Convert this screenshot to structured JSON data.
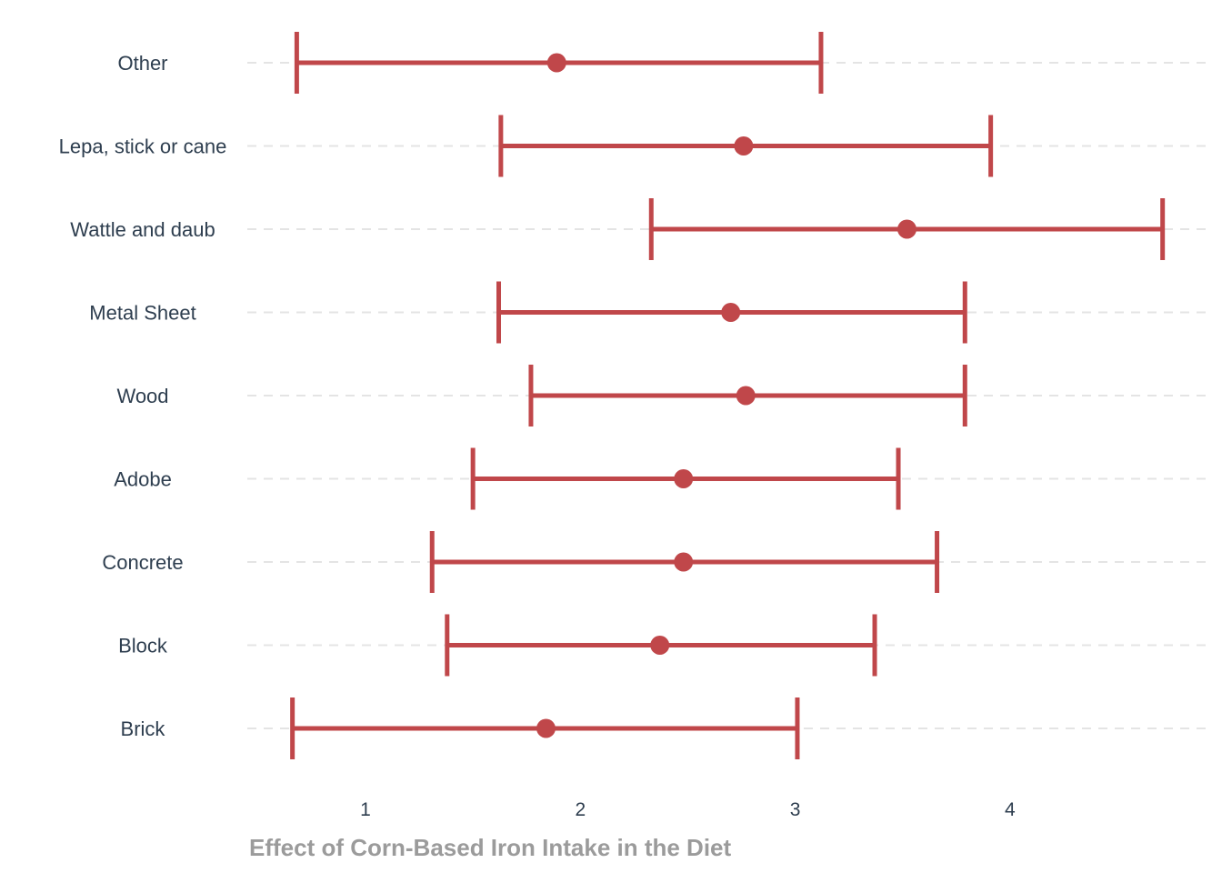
{
  "chart_data": {
    "type": "errorbar",
    "orientation": "horizontal",
    "xlabel": "Effect of Corn-Based Iron Intake in the Diet",
    "ylabel": "",
    "xlim": [
      0.5,
      4.9
    ],
    "xticks": [
      "1",
      "2",
      "3",
      "4"
    ],
    "grid": "horizontal-dashed",
    "color": "#c0474a",
    "categories": [
      "Other",
      "Lepa, stick or cane",
      "Wattle and daub",
      "Metal Sheet",
      "Wood",
      "Adobe",
      "Concrete",
      "Block",
      "Brick"
    ],
    "estimates": [
      1.89,
      2.76,
      3.52,
      2.7,
      2.77,
      2.48,
      2.48,
      2.37,
      1.84
    ],
    "lower": [
      0.68,
      1.63,
      2.33,
      1.62,
      1.77,
      1.5,
      1.31,
      1.38,
      0.66
    ],
    "upper": [
      3.12,
      3.91,
      4.71,
      3.79,
      3.79,
      3.48,
      3.66,
      3.37,
      3.01
    ]
  }
}
